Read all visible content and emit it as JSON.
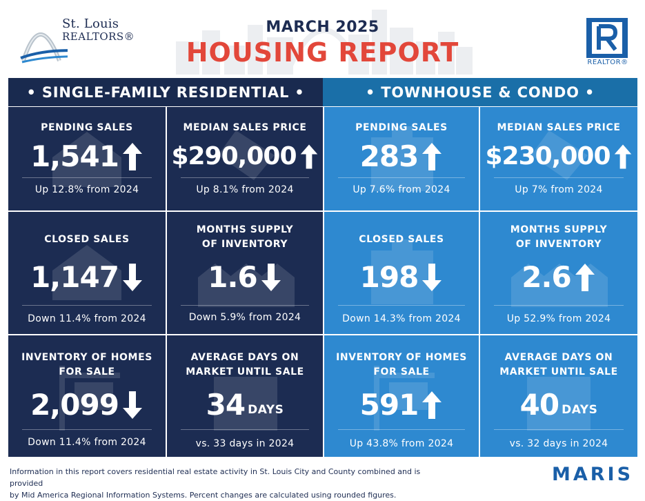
{
  "header": {
    "org_city": "St. Louis",
    "org_name": "REALTORS®",
    "month": "MARCH 2025",
    "title": "HOUSING REPORT",
    "realtor_mark": "REALTOR®"
  },
  "colors": {
    "navy": "#1c2c52",
    "blue": "#2e89d0",
    "title_red": "#e2473a",
    "brand_blue": "#1a5fa8"
  },
  "sections": {
    "single_family": "• SINGLE-FAMILY RESIDENTIAL •",
    "townhouse": "• TOWNHOUSE & CONDO •"
  },
  "stats": {
    "sf_pending": {
      "label": "PENDING SALES",
      "value": "1,541",
      "direction": "up",
      "change": "Up 12.8% from 2024",
      "icon": "house-icon"
    },
    "sf_price": {
      "label": "MEDIAN SALES PRICE",
      "value": "$290,000",
      "direction": "up",
      "change": "Up 8.1% from 2024",
      "icon": "price-tag-icon"
    },
    "sf_closed": {
      "label": "CLOSED SALES",
      "value": "1,147",
      "direction": "down",
      "change": "Down 11.4% from 2024",
      "icon": "house-icon"
    },
    "sf_supply": {
      "label_line1": "MONTHS SUPPLY",
      "label_line2": "OF INVENTORY",
      "value": "1.6",
      "direction": "down",
      "change": "Down 5.9% from 2024",
      "icon": "houses-icon"
    },
    "sf_inventory": {
      "label_line1": "INVENTORY OF HOMES",
      "label_line2": "FOR SALE",
      "value": "2,099",
      "direction": "down",
      "change": "Down 11.4% from 2024",
      "icon": "sign-icon"
    },
    "sf_days": {
      "label_line1": "AVERAGE DAYS ON",
      "label_line2": "MARKET UNTIL SALE",
      "value": "34",
      "unit": "DAYS",
      "change": "vs. 33 days in 2024",
      "icon": "calendar-icon"
    },
    "tc_pending": {
      "label": "PENDING SALES",
      "value": "283",
      "direction": "up",
      "change": "Up 7.6% from 2024",
      "icon": "building-icon"
    },
    "tc_price": {
      "label": "MEDIAN SALES PRICE",
      "value": "$230,000",
      "direction": "up",
      "change": "Up 7% from 2024",
      "icon": "price-tag-icon"
    },
    "tc_closed": {
      "label": "CLOSED SALES",
      "value": "198",
      "direction": "down",
      "change": "Down 14.3% from 2024",
      "icon": "building-icon"
    },
    "tc_supply": {
      "label_line1": "MONTHS SUPPLY",
      "label_line2": "OF INVENTORY",
      "value": "2.6",
      "direction": "up",
      "change": "Up 52.9% from 2024",
      "icon": "houses-icon"
    },
    "tc_inventory": {
      "label_line1": "INVENTORY OF HOMES",
      "label_line2": "FOR SALE",
      "value": "591",
      "direction": "up",
      "change": "Up 43.8% from 2024",
      "icon": "sign-icon"
    },
    "tc_days": {
      "label_line1": "AVERAGE DAYS ON",
      "label_line2": "MARKET UNTIL SALE",
      "value": "40",
      "unit": "DAYS",
      "change": "vs. 32 days in 2024",
      "icon": "calendar-icon"
    }
  },
  "footer": {
    "line1": "Information in this report covers residential real estate activity in St. Louis City and County combined and is provided",
    "line2": "by Mid America Regional Information Systems. Percent changes are calculated using rounded figures.",
    "brand": "MARIS"
  }
}
